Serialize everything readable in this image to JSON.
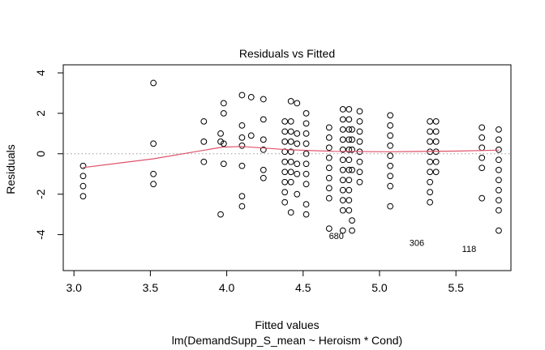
{
  "chart_data": {
    "type": "scatter",
    "title": "Residuals vs Fitted",
    "xlabel": "Fitted values",
    "subtitle": "lm(DemandSupp_S_mean ~ Heroism * Cond)",
    "ylabel": "Residuals",
    "xlim": [
      2.93,
      5.86
    ],
    "ylim": [
      -5.78,
      4.4
    ],
    "xticks": [
      {
        "value": 3.0,
        "label": "3.0"
      },
      {
        "value": 3.5,
        "label": "3.5"
      },
      {
        "value": 4.0,
        "label": "4.0"
      },
      {
        "value": 4.5,
        "label": "4.5"
      },
      {
        "value": 5.0,
        "label": "5.0"
      },
      {
        "value": 5.5,
        "label": "5.5"
      }
    ],
    "yticks": [
      {
        "value": -4,
        "label": "-4"
      },
      {
        "value": -2,
        "label": "-2"
      },
      {
        "value": 0,
        "label": "0"
      },
      {
        "value": 2,
        "label": "2"
      },
      {
        "value": 4,
        "label": "4"
      }
    ],
    "reference_line": 0,
    "smooth_color": "#df536b",
    "smooth": [
      [
        3.06,
        -0.68
      ],
      [
        3.52,
        -0.25
      ],
      [
        3.97,
        0.33
      ],
      [
        4.1,
        0.36
      ],
      [
        4.4,
        0.2
      ],
      [
        4.7,
        0.12
      ],
      [
        5.07,
        0.1
      ],
      [
        5.5,
        0.13
      ],
      [
        5.78,
        0.18
      ]
    ],
    "columns": [
      {
        "x": 3.06,
        "residuals": [
          -0.6,
          -1.1,
          -1.6,
          -2.1
        ]
      },
      {
        "x": 3.52,
        "residuals": [
          3.5,
          0.5,
          -1.0,
          -1.5
        ]
      },
      {
        "x": 3.85,
        "residuals": [
          1.6,
          0.6,
          -0.4
        ]
      },
      {
        "x": 3.96,
        "residuals": [
          1.0,
          0.6,
          -3.0
        ]
      },
      {
        "x": 3.98,
        "residuals": [
          2.5,
          2.0,
          0.5,
          -0.5
        ]
      },
      {
        "x": 4.1,
        "residuals": [
          2.9,
          1.4,
          0.8,
          0.4,
          -0.6,
          -2.1,
          -2.6
        ]
      },
      {
        "x": 4.16,
        "residuals": [
          2.8,
          0.9
        ]
      },
      {
        "x": 4.24,
        "residuals": [
          2.7,
          1.7,
          0.7,
          0.2,
          -0.8,
          -1.2
        ]
      },
      {
        "x": 4.38,
        "residuals": [
          1.6,
          1.1,
          0.6,
          0.1,
          -0.4,
          -0.9,
          -1.4,
          -1.9,
          -2.4
        ]
      },
      {
        "x": 4.42,
        "residuals": [
          2.6,
          1.6,
          1.1,
          0.6,
          0.1,
          -0.4,
          -0.9,
          -1.4,
          -2.9
        ]
      },
      {
        "x": 4.46,
        "residuals": [
          2.5,
          1.0,
          0.5,
          -0.5,
          -1.0,
          -2.0
        ]
      },
      {
        "x": 4.52,
        "residuals": [
          2.0,
          1.5,
          1.0,
          0.5,
          0.0,
          -0.5,
          -1.0,
          -1.5,
          -2.5,
          -3.0
        ]
      },
      {
        "x": 4.67,
        "residuals": [
          1.3,
          0.8,
          0.3,
          -0.2,
          -0.7,
          -1.2,
          -1.7,
          -2.2,
          -3.7
        ]
      },
      {
        "x": 4.76,
        "residuals": [
          2.2,
          1.7,
          1.2,
          0.7,
          0.2,
          -0.3,
          -0.8,
          -1.3,
          -1.8,
          -2.3,
          -2.8,
          -3.8
        ]
      },
      {
        "x": 4.8,
        "residuals": [
          2.2,
          1.7,
          1.2,
          0.7,
          0.2,
          -0.3,
          -0.8,
          -1.3,
          -1.8,
          -2.3,
          -2.8
        ]
      },
      {
        "x": 4.82,
        "residuals": [
          1.2,
          0.7,
          0.2,
          -0.8,
          -3.3,
          -3.8
        ]
      },
      {
        "x": 4.87,
        "residuals": [
          2.1,
          1.6,
          1.1,
          0.6,
          0.1,
          -0.4,
          -0.9,
          -1.4
        ]
      },
      {
        "x": 5.07,
        "residuals": [
          1.9,
          1.4,
          0.9,
          0.4,
          -0.1,
          -0.6,
          -1.1,
          -1.6,
          -2.6
        ]
      },
      {
        "x": 5.33,
        "residuals": [
          1.6,
          1.1,
          0.6,
          0.1,
          -0.4,
          -0.9,
          -1.4,
          -1.9,
          -2.4
        ]
      },
      {
        "x": 5.37,
        "residuals": [
          1.6,
          1.1,
          0.6,
          0.1,
          -0.4,
          -0.9
        ]
      },
      {
        "x": 5.67,
        "residuals": [
          1.3,
          0.8,
          0.3,
          -0.2,
          -0.7,
          -2.2
        ]
      },
      {
        "x": 5.78,
        "residuals": [
          1.2,
          0.7,
          0.2,
          -0.3,
          -0.8,
          -1.3,
          -1.8,
          -2.3,
          -2.8,
          -3.8
        ]
      }
    ],
    "labeled_points": [
      {
        "label": "680",
        "x": 4.69,
        "y": -3.7,
        "side": "right"
      },
      {
        "label": "306",
        "x": 5.33,
        "y": -4.4,
        "side": "left"
      },
      {
        "label": "118",
        "x": 5.67,
        "y": -4.7,
        "side": "left"
      }
    ]
  }
}
